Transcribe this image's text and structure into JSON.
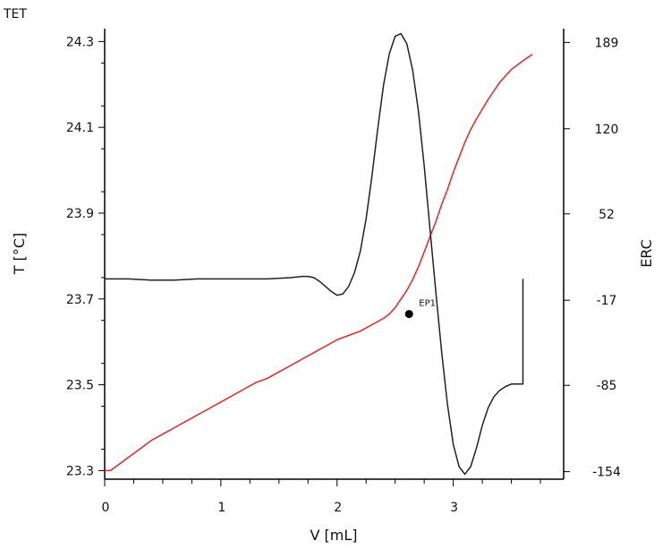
{
  "chart_data": {
    "type": "line",
    "corner_label": "TET",
    "xlabel": "V [mL]",
    "ylabel_left": "T [°C]",
    "ylabel_right": "ERC",
    "xlim": [
      0,
      3.95
    ],
    "ylim_left": [
      23.28,
      24.33
    ],
    "ylim_right": [
      -160,
      200
    ],
    "x_ticks": [
      0,
      1,
      2,
      3
    ],
    "y_left_ticks": [
      23.3,
      23.5,
      23.7,
      23.9,
      24.1,
      24.3
    ],
    "y_right_ticks": [
      189,
      120,
      52,
      -17,
      -85,
      -154
    ],
    "grid": false,
    "colors": {
      "temperature": "#e8262b",
      "erc": "#222222",
      "axes": "#000000",
      "ylabel_left": "#e8262b"
    },
    "series": [
      {
        "axis": "left",
        "x": [
          0,
          0.05,
          0.1,
          0.2,
          0.3,
          0.4,
          0.5,
          0.6,
          0.7,
          0.8,
          0.9,
          1.0,
          1.1,
          1.2,
          1.3,
          1.4,
          1.5,
          1.6,
          1.7,
          1.8,
          1.9,
          2.0,
          2.1,
          2.2,
          2.3,
          2.4,
          2.45,
          2.5,
          2.55,
          2.6,
          2.65,
          2.7,
          2.75,
          2.8,
          2.85,
          2.9,
          2.95,
          3.0,
          3.05,
          3.1,
          3.15,
          3.2,
          3.3,
          3.4,
          3.5,
          3.6,
          3.68
        ],
        "y": [
          23.3,
          23.3,
          23.31,
          23.33,
          23.35,
          23.37,
          23.385,
          23.4,
          23.415,
          23.43,
          23.445,
          23.46,
          23.475,
          23.49,
          23.505,
          23.515,
          23.53,
          23.545,
          23.56,
          23.575,
          23.59,
          23.605,
          23.615,
          23.625,
          23.64,
          23.655,
          23.665,
          23.68,
          23.7,
          23.72,
          23.745,
          23.775,
          23.81,
          23.845,
          23.88,
          23.92,
          23.955,
          23.995,
          24.03,
          24.065,
          24.095,
          24.12,
          24.165,
          24.205,
          24.235,
          24.255,
          24.27
        ]
      },
      {
        "axis": "right",
        "x": [
          0,
          0.2,
          0.4,
          0.6,
          0.8,
          1.0,
          1.2,
          1.4,
          1.6,
          1.7,
          1.75,
          1.8,
          1.85,
          1.9,
          1.95,
          2.0,
          2.05,
          2.1,
          2.15,
          2.2,
          2.25,
          2.3,
          2.35,
          2.4,
          2.45,
          2.5,
          2.55,
          2.6,
          2.65,
          2.7,
          2.75,
          2.8,
          2.85,
          2.9,
          2.95,
          3.0,
          3.05,
          3.1,
          3.15,
          3.2,
          3.25,
          3.3,
          3.35,
          3.4,
          3.45,
          3.5,
          3.55,
          3.6,
          3.6,
          3.6
        ],
        "y": [
          0,
          0,
          -1,
          -1,
          0,
          0,
          0,
          0,
          1,
          2,
          2,
          1,
          -2,
          -6,
          -10,
          -13,
          -12,
          -6,
          5,
          22,
          48,
          82,
          120,
          155,
          180,
          194,
          196,
          188,
          167,
          134,
          90,
          40,
          -10,
          -58,
          -100,
          -132,
          -150,
          -156,
          -150,
          -135,
          -117,
          -103,
          -94,
          -89,
          -86,
          -84,
          -84,
          -84,
          0,
          0
        ]
      }
    ],
    "annotation": {
      "label": "EP1",
      "x": 2.62,
      "y": 23.665
    }
  }
}
